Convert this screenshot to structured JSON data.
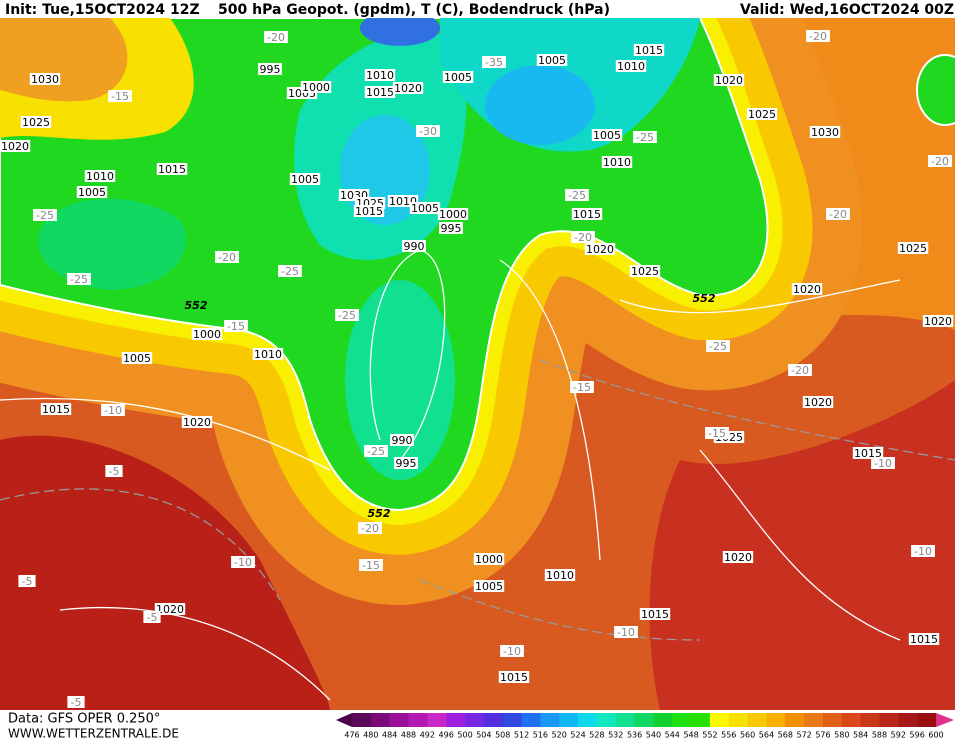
{
  "header": {
    "init": "Init: Tue,15OCT2024 12Z",
    "title": "500 hPa Geopot. (gpdm), T (C), Bodendruck (hPa)",
    "valid": "Valid: Wed,16OCT2024 00Z"
  },
  "footer": {
    "data": "Data: GFS OPER 0.250°",
    "site": "WWW.WETTERZENTRALE.DE"
  },
  "pressure_labels": [
    1030,
    1025,
    1020,
    1015,
    1010,
    1005,
    995,
    1005,
    1000,
    1010,
    1015,
    1020,
    1005,
    1005,
    1015,
    1010,
    1020,
    1025,
    1030,
    1005,
    1010,
    1005,
    1030,
    1025,
    1015,
    1010,
    1005,
    1000,
    995,
    990,
    1015,
    1020,
    1025,
    1020,
    1025,
    1020,
    1000,
    1005,
    1010,
    1015,
    1020,
    990,
    995,
    1020,
    1025,
    1015,
    1020,
    1000,
    1010,
    1005,
    1020,
    1015,
    1015,
    1015
  ],
  "temperature_labels": [
    -20,
    -15,
    -35,
    -30,
    -25,
    -20,
    -20,
    -20,
    -25,
    -20,
    -25,
    -25,
    -15,
    -25,
    -20,
    -25,
    -25,
    -20,
    -15,
    -10,
    -15,
    -10,
    -25,
    -20,
    -15,
    -10,
    -5,
    -5,
    -5,
    -10,
    -10,
    -10,
    -5
  ],
  "height_labels": [
    552,
    552,
    552
  ],
  "colorbar": {
    "ticks": [
      476,
      480,
      484,
      488,
      492,
      496,
      500,
      504,
      508,
      512,
      516,
      520,
      524,
      528,
      532,
      536,
      540,
      544,
      548,
      552,
      556,
      560,
      564,
      568,
      572,
      576,
      580,
      584,
      588,
      592,
      596,
      600
    ],
    "colors": [
      "#5a0a5a",
      "#7a0a7a",
      "#9a109a",
      "#b418b4",
      "#c828c8",
      "#a020e0",
      "#7828e0",
      "#5030e0",
      "#3048e0",
      "#2070f0",
      "#1898f8",
      "#10b8f8",
      "#10d8e8",
      "#10e8c0",
      "#10e090",
      "#10d860",
      "#10d030",
      "#20e010",
      "#28e000",
      "#f8f800",
      "#f8e000",
      "#f8c800",
      "#f8b000",
      "#f09000",
      "#e87818",
      "#e06018",
      "#d84818",
      "#c83818",
      "#b82818",
      "#a81818",
      "#981010"
    ]
  }
}
